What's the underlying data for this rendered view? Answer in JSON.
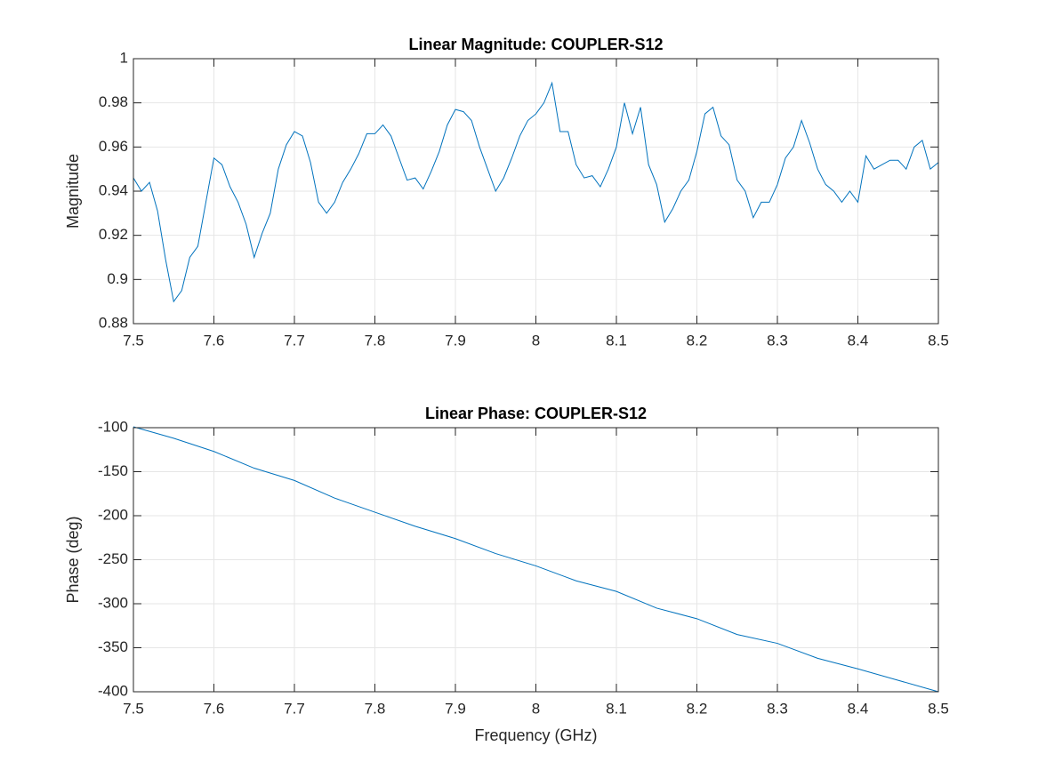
{
  "chart_data": [
    {
      "type": "line",
      "title": "Linear Magnitude: COUPLER-S12",
      "y_label": "Magnitude",
      "x": [
        7.5,
        7.51,
        7.52,
        7.53,
        7.54,
        7.55,
        7.56,
        7.57,
        7.58,
        7.59,
        7.6,
        7.61,
        7.62,
        7.63,
        7.64,
        7.65,
        7.66,
        7.67,
        7.68,
        7.69,
        7.7,
        7.71,
        7.72,
        7.73,
        7.74,
        7.75,
        7.76,
        7.77,
        7.78,
        7.79,
        7.8,
        7.81,
        7.82,
        7.83,
        7.84,
        7.85,
        7.86,
        7.87,
        7.88,
        7.89,
        7.9,
        7.91,
        7.92,
        7.93,
        7.94,
        7.95,
        7.96,
        7.97,
        7.98,
        7.99,
        8.0,
        8.01,
        8.02,
        8.03,
        8.04,
        8.05,
        8.06,
        8.07,
        8.08,
        8.09,
        8.1,
        8.11,
        8.12,
        8.13,
        8.14,
        8.15,
        8.16,
        8.17,
        8.18,
        8.19,
        8.2,
        8.21,
        8.22,
        8.23,
        8.24,
        8.25,
        8.26,
        8.27,
        8.28,
        8.29,
        8.3,
        8.31,
        8.32,
        8.33,
        8.34,
        8.35,
        8.36,
        8.37,
        8.38,
        8.39,
        8.4,
        8.41,
        8.42,
        8.43,
        8.44,
        8.45,
        8.46,
        8.47,
        8.48,
        8.49,
        8.5
      ],
      "series": [
        {
          "color": "#0072bd",
          "values": [
            0.946,
            0.94,
            0.944,
            0.931,
            0.909,
            0.89,
            0.895,
            0.91,
            0.915,
            0.935,
            0.955,
            0.952,
            0.942,
            0.935,
            0.925,
            0.91,
            0.921,
            0.93,
            0.95,
            0.961,
            0.967,
            0.965,
            0.953,
            0.935,
            0.93,
            0.935,
            0.944,
            0.95,
            0.957,
            0.966,
            0.966,
            0.97,
            0.965,
            0.955,
            0.945,
            0.946,
            0.941,
            0.949,
            0.958,
            0.97,
            0.977,
            0.976,
            0.972,
            0.96,
            0.95,
            0.94,
            0.946,
            0.955,
            0.965,
            0.972,
            0.975,
            0.98,
            0.989,
            0.967,
            0.967,
            0.952,
            0.946,
            0.947,
            0.942,
            0.95,
            0.96,
            0.98,
            0.966,
            0.978,
            0.952,
            0.943,
            0.926,
            0.932,
            0.94,
            0.945,
            0.958,
            0.975,
            0.978,
            0.965,
            0.961,
            0.945,
            0.94,
            0.928,
            0.935,
            0.935,
            0.943,
            0.955,
            0.96,
            0.972,
            0.962,
            0.95,
            0.943,
            0.94,
            0.935,
            0.94,
            0.935,
            0.956,
            0.95,
            0.952,
            0.954,
            0.954,
            0.95,
            0.96,
            0.963,
            0.95,
            0.953
          ]
        }
      ],
      "xlim": [
        7.5,
        8.5
      ],
      "xticks": [
        7.5,
        7.6,
        7.7,
        7.8,
        7.9,
        8,
        8.1,
        8.2,
        8.3,
        8.4,
        8.5
      ],
      "ylim": [
        0.88,
        1
      ],
      "yticks": [
        0.88,
        0.9,
        0.92,
        0.94,
        0.96,
        0.98,
        1
      ],
      "grid": true
    },
    {
      "type": "line",
      "title": "Linear Phase: COUPLER-S12",
      "x_label": "Frequency (GHz)",
      "y_label": "Phase (deg)",
      "x": [
        7.5,
        7.55,
        7.6,
        7.65,
        7.7,
        7.75,
        7.8,
        7.85,
        7.9,
        7.95,
        8.0,
        8.05,
        8.1,
        8.15,
        8.2,
        8.25,
        8.3,
        8.35,
        8.4,
        8.45,
        8.5
      ],
      "series": [
        {
          "color": "#0072bd",
          "values": [
            -99,
            -112,
            -127,
            -146,
            -160,
            -180,
            -196,
            -212,
            -226,
            -243,
            -257,
            -274,
            -286,
            -305,
            -317,
            -335,
            -345,
            -362,
            -374,
            -387,
            -400
          ]
        }
      ],
      "xlim": [
        7.5,
        8.5
      ],
      "xticks": [
        7.5,
        7.6,
        7.7,
        7.8,
        7.9,
        8,
        8.1,
        8.2,
        8.3,
        8.4,
        8.5
      ],
      "ylim": [
        -400,
        -100
      ],
      "yticks": [
        -400,
        -350,
        -300,
        -250,
        -200,
        -150,
        -100
      ],
      "grid": true
    }
  ]
}
